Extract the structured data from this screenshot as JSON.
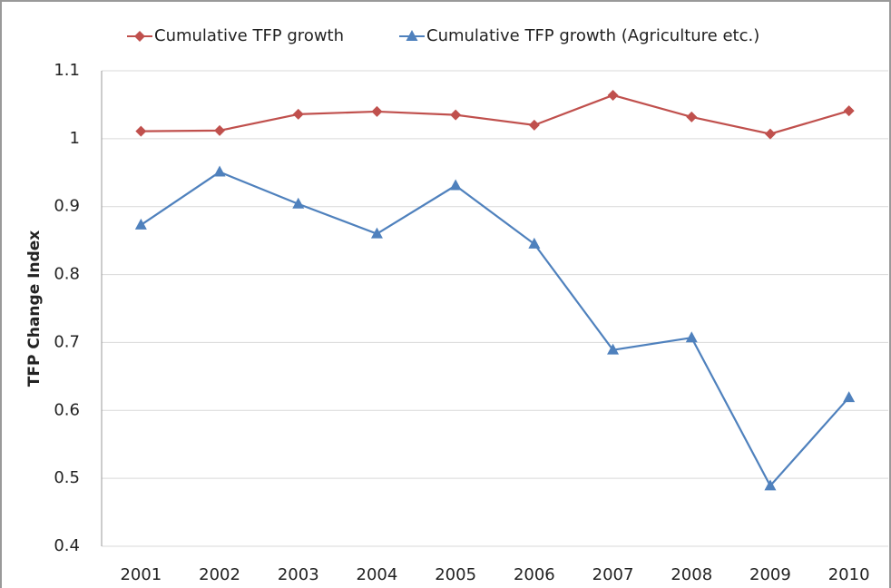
{
  "chart_data": {
    "type": "line",
    "y_label": "TFP Change Index",
    "categories": [
      "2001",
      "2002",
      "2003",
      "2004",
      "2005",
      "2006",
      "2007",
      "2008",
      "2009",
      "2010"
    ],
    "series": [
      {
        "name": "Cumulative TFP growth",
        "color": "#c0504d",
        "marker": "diamond",
        "values": [
          1.011,
          1.012,
          1.036,
          1.04,
          1.035,
          1.02,
          1.064,
          1.032,
          1.007,
          1.041
        ]
      },
      {
        "name": "Cumulative TFP growth (Agriculture etc.)",
        "color": "#4f81bd",
        "marker": "triangle",
        "values": [
          0.873,
          0.951,
          0.904,
          0.86,
          0.931,
          0.845,
          0.689,
          0.707,
          0.489,
          0.619
        ]
      }
    ],
    "ylim": [
      0.4,
      1.1
    ],
    "yticks": [
      0.4,
      0.5,
      0.6,
      0.7,
      0.8,
      0.9,
      1,
      1.1
    ],
    "grid": true,
    "legend": "top"
  }
}
